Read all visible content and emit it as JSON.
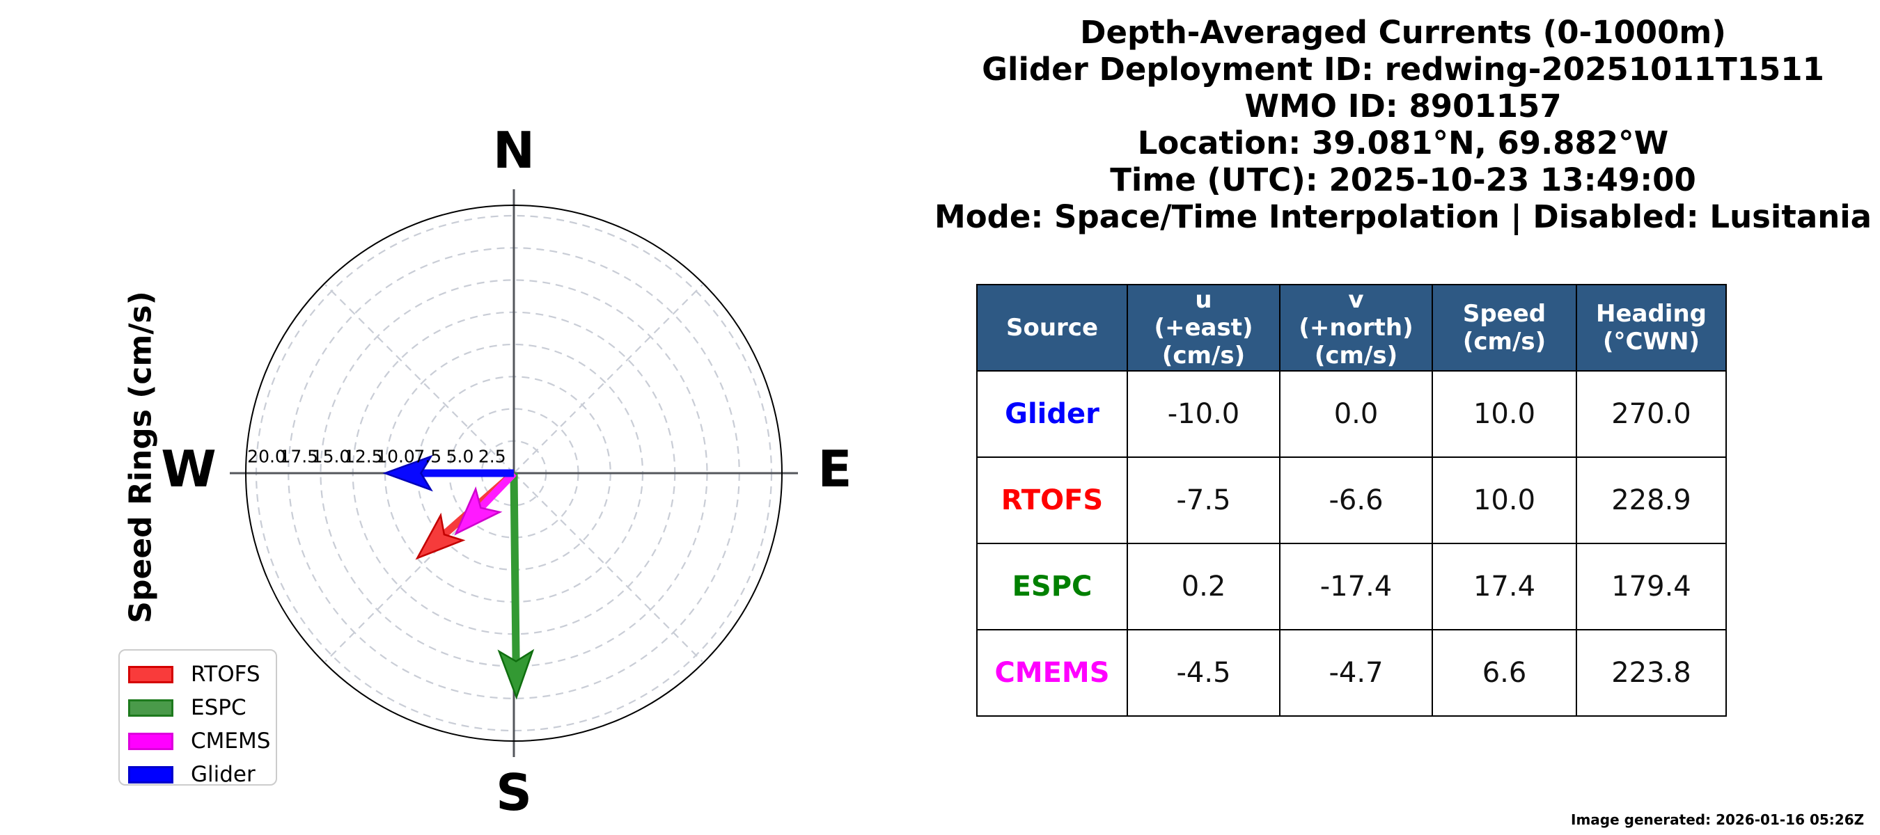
{
  "chart_data": {
    "type": "quiver-polar",
    "description": "Compass-style polar plot of depth-averaged current vectors with dashed speed rings",
    "axis_label": "Speed Rings (cm/s)",
    "ring_interval_cms": 2.5,
    "rings": [
      {
        "value": 2.5,
        "label": "2.5"
      },
      {
        "value": 5.0,
        "label": "5.0"
      },
      {
        "value": 7.5,
        "label": "7.5"
      },
      {
        "value": 10.0,
        "label": "10.0"
      },
      {
        "value": 12.5,
        "label": "12.5"
      },
      {
        "value": 15.0,
        "label": "15.0"
      },
      {
        "value": 17.5,
        "label": "17.5"
      },
      {
        "value": 20.0,
        "label": "20.0"
      }
    ],
    "rmax_cms": 20.8,
    "grid_color": "#c9cdd6",
    "axis_line_color": "#54575c",
    "outer_circle_color": "#000000",
    "series": [
      {
        "name": "RTOFS",
        "u": -7.5,
        "v": -6.6,
        "speed_cms": 10.0,
        "heading_deg_cwn": 228.9,
        "fill": "#f63b3b",
        "edge": "#c30000"
      },
      {
        "name": "ESPC",
        "u": 0.2,
        "v": -17.4,
        "speed_cms": 17.4,
        "heading_deg_cwn": 179.4,
        "fill": "#339933",
        "edge": "#0f6e0f"
      },
      {
        "name": "CMEMS",
        "u": -4.5,
        "v": -4.7,
        "speed_cms": 6.6,
        "heading_deg_cwn": 223.8,
        "fill": "#ff1aff",
        "edge": "#cf00cf"
      },
      {
        "name": "Glider",
        "u": -10.0,
        "v": 0.0,
        "speed_cms": 10.0,
        "heading_deg_cwn": 270.0,
        "fill": "#0808ff",
        "edge": "#0000b8"
      }
    ]
  },
  "compass": {
    "north": "N",
    "east": "E",
    "south": "S",
    "west": "W"
  },
  "legend": {
    "items": [
      {
        "label": "RTOFS",
        "fill": "#f93b3b",
        "edge": "#d40000"
      },
      {
        "label": "ESPC",
        "fill": "#4a9a4a",
        "edge": "#1e7a1e"
      },
      {
        "label": "CMEMS",
        "fill": "#ff00ff",
        "edge": "#dd00dd"
      },
      {
        "label": "Glider",
        "fill": "#0000ff",
        "edge": "#0000cc"
      }
    ]
  },
  "title_block": {
    "lines": [
      "Depth-Averaged Currents (0-1000m)",
      "Glider Deployment ID: redwing-20251011T1511",
      "WMO ID: 8901157",
      "Location: 39.081°N, 69.882°W",
      "Time (UTC): 2025-10-23 13:49:00",
      "Mode: Space/Time Interpolation | Disabled: Lusitania"
    ]
  },
  "table": {
    "header_bg": "#2E5984",
    "headers": [
      [
        "Source"
      ],
      [
        "u",
        "(+east)",
        "(cm/s)"
      ],
      [
        "v",
        "(+north)",
        "(cm/s)"
      ],
      [
        "Speed",
        "(cm/s)"
      ],
      [
        "Heading",
        "(°CWN)"
      ]
    ],
    "rows": [
      {
        "source": "Glider",
        "source_color": "#0000ff",
        "cells": [
          "-10.0",
          "0.0",
          "10.0",
          "270.0"
        ]
      },
      {
        "source": "RTOFS",
        "source_color": "#ff0000",
        "cells": [
          "-7.5",
          "-6.6",
          "10.0",
          "228.9"
        ]
      },
      {
        "source": "ESPC",
        "source_color": "#008000",
        "cells": [
          "0.2",
          "-17.4",
          "17.4",
          "179.4"
        ]
      },
      {
        "source": "CMEMS",
        "source_color": "#ff00ff",
        "cells": [
          "-4.5",
          "-4.7",
          "6.6",
          "223.8"
        ]
      }
    ]
  },
  "footer": {
    "text": "Image generated: 2026-01-16 05:26Z"
  }
}
